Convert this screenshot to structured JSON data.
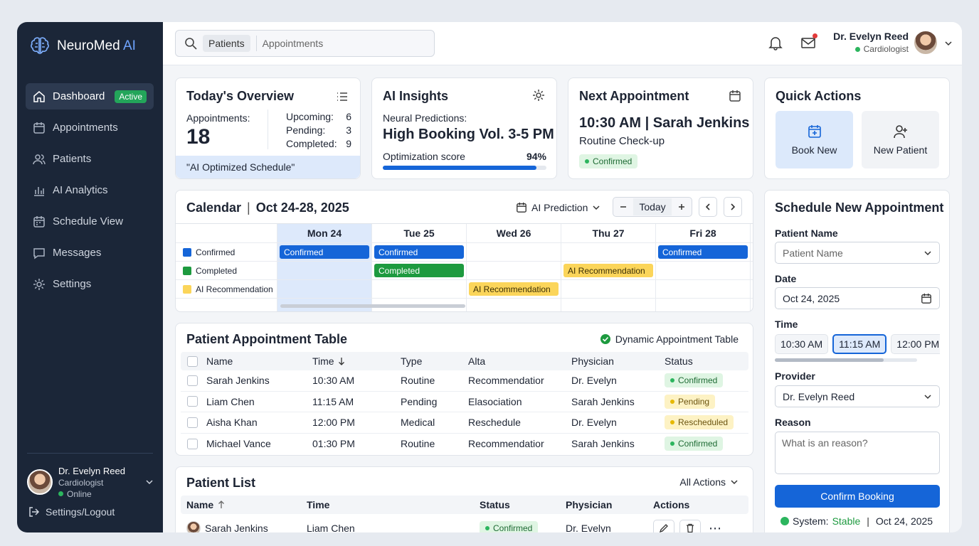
{
  "brand": {
    "name": "NeuroMed",
    "accent": "AI"
  },
  "sidebar": {
    "items": [
      {
        "label": "Dashboard",
        "badge": "Active"
      },
      {
        "label": "Appointments"
      },
      {
        "label": "Patients"
      },
      {
        "label": "AI Analytics"
      },
      {
        "label": "Schedule View"
      },
      {
        "label": "Messages"
      },
      {
        "label": "Settings"
      }
    ],
    "user": {
      "name": "Dr. Evelyn Reed",
      "role": "Cardiologist",
      "status": "Online"
    },
    "logout": "Settings/Logout"
  },
  "topbar": {
    "search_chip": "Patients",
    "search_text": "Appointments",
    "user_name": "Dr. Evelyn Reed",
    "user_role": "Cardiologist"
  },
  "overview": {
    "title": "Today's Overview",
    "appointments_label": "Appointments:",
    "appointments_count": "18",
    "upcoming_label": "Upcoming:",
    "upcoming": "6",
    "pending_label": "Pending:",
    "pending": "3",
    "completed_label": "Completed:",
    "completed": "9",
    "footer": "\"AI Optimized Schedule\""
  },
  "ai_insights": {
    "title": "AI Insights",
    "predictions_label": "Neural Predictions:",
    "prediction": "High Booking Vol. 3-5 PM",
    "score_label": "Optimization score",
    "score": "94%",
    "score_fraction": 0.94
  },
  "next_appointment": {
    "title": "Next Appointment",
    "time": "10:30 AM",
    "patient": "Sarah Jenkins",
    "type": "Routine Check-up",
    "status": "Confirmed"
  },
  "quick_actions": {
    "title": "Quick Actions",
    "book_new": "Book New",
    "new_patient": "New Patient"
  },
  "calendar": {
    "title": "Calendar",
    "range": "Oct 24-28, 2025",
    "prediction": "AI Prediction",
    "today": "Today",
    "days": [
      "Mon 24",
      "Tue 25",
      "Wed 26",
      "Thu 27",
      "Fri 28"
    ],
    "legend": [
      {
        "label": "Confirmed",
        "color": "#1565d8"
      },
      {
        "label": "Completed",
        "color": "#1d9a3f"
      },
      {
        "label": "AI Recommendation",
        "color": "#fbd55a"
      }
    ],
    "events": {
      "mon_confirmed": "Confirmed",
      "tue_confirmed": "Confirmed",
      "fri_confirmed": "Confirmed",
      "tue_completed": "Completed",
      "thu_ai": "AI Recommendation",
      "wed_ai": "AI Recommendation"
    }
  },
  "appt_table": {
    "title": "Patient Appointment Table",
    "dynamic_label": "Dynamic Appointment Table",
    "headers": [
      "Name",
      "Time",
      "Type",
      "Alta",
      "Physician",
      "Status"
    ],
    "rows": [
      {
        "name": "Sarah Jenkins",
        "time": "10:30 AM",
        "type": "Routine",
        "alta": "Recommendatior",
        "physician": "Dr. Evelyn",
        "status": "Confirmed"
      },
      {
        "name": "Liam Chen",
        "time": "11:15 AM",
        "type": "Pending",
        "alta": "Elasociation",
        "physician": "Sarah Jenkins",
        "status": "Pending"
      },
      {
        "name": "Aisha Khan",
        "time": "12:00 PM",
        "type": "Medical",
        "alta": "Reschedule",
        "physician": "Dr. Evelyn",
        "status": "Rescheduled"
      },
      {
        "name": "Michael Vance",
        "time": "01:30 PM",
        "type": "Routine",
        "alta": "Recommendatior",
        "physician": "Sarah Jenkins",
        "status": "Confirmed"
      }
    ]
  },
  "patient_list": {
    "title": "Patient List",
    "actions_label": "All Actions",
    "headers": [
      "Name",
      "Time",
      "Status",
      "Physician",
      "Actions"
    ],
    "rows": [
      {
        "name": "Sarah Jenkins",
        "time": "Liam Chen",
        "status": "Confirmed",
        "physician": "Dr. Evelyn"
      }
    ]
  },
  "schedule_form": {
    "title": "Schedule New Appointment",
    "patient_label": "Patient Name",
    "patient_placeholder": "Patient Name",
    "date_label": "Date",
    "date_value": "Oct 24, 2025",
    "time_label": "Time",
    "times": [
      "10:30 AM",
      "11:15 AM",
      "12:00 PM"
    ],
    "selected_time": "11:15 AM",
    "provider_label": "Provider",
    "provider_value": "Dr. Evelyn Reed",
    "reason_label": "Reason",
    "reason_placeholder": "What is an reason?",
    "confirm": "Confirm Booking",
    "system_label": "System:",
    "system_status": "Stable",
    "system_date": "Oct 24, 2025"
  },
  "colors": {
    "primary": "#1565d8",
    "success": "#1d9a3f",
    "warning": "#fbd55a",
    "sidebar": "#1b2638"
  }
}
